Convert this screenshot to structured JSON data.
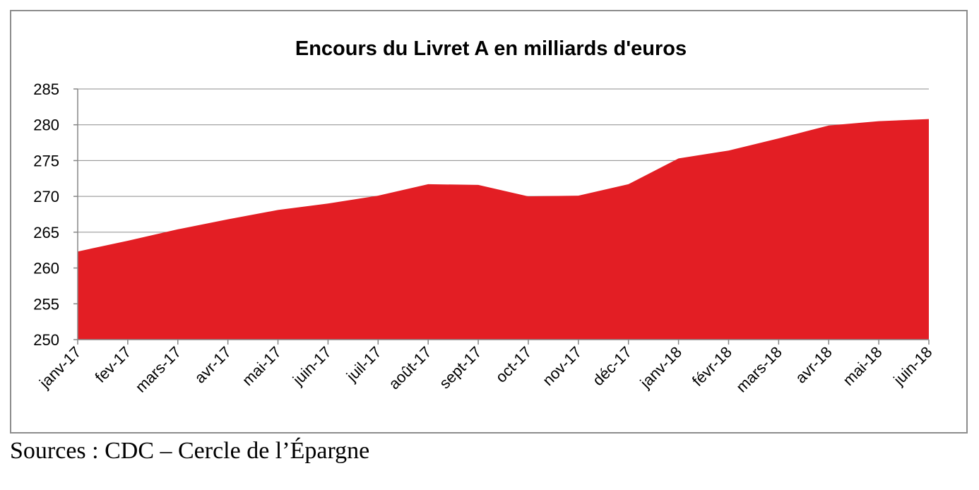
{
  "chart_data": {
    "type": "area",
    "title": "Encours du Livret A en milliards d'euros",
    "xlabel": "",
    "ylabel": "",
    "categories": [
      "janv-17",
      "fev-17",
      "mars-17",
      "avr-17",
      "mai-17",
      "juin-17",
      "juil-17",
      "août-17",
      "sept-17",
      "oct-17",
      "nov-17",
      "déc-17",
      "janv-18",
      "févr-18",
      "mars-18",
      "avr-18",
      "mai-18",
      "juin-18"
    ],
    "values": [
      262.3,
      263.8,
      265.4,
      266.8,
      268.1,
      269.0,
      270.1,
      271.7,
      271.6,
      270.0,
      270.1,
      271.7,
      275.3,
      276.4,
      278.1,
      279.9,
      280.5,
      280.8
    ],
    "ylim": [
      250,
      285
    ],
    "yticks": [
      250,
      255,
      260,
      265,
      270,
      275,
      280,
      285
    ],
    "grid": true,
    "legend": "none",
    "fill_color": "#e31e24",
    "grid_color": "#8c8c8c",
    "axis_color": "#868686"
  },
  "footer": {
    "source": "Sources : CDC – Cercle de l’Épargne"
  }
}
